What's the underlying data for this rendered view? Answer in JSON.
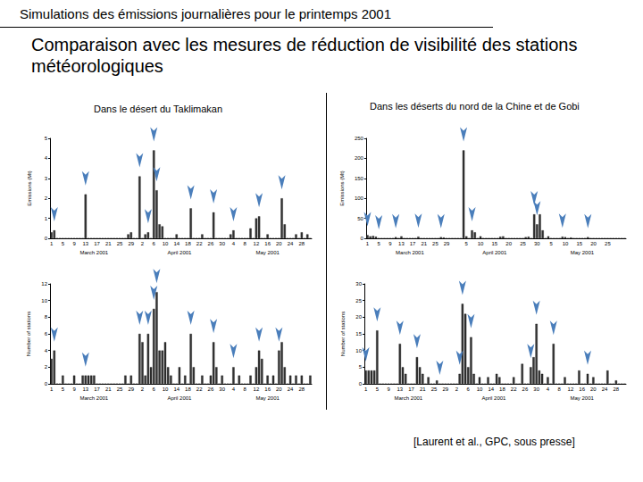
{
  "page": {
    "title": "Simulations des émissions journalières pour le printemps 2001",
    "subtitle": "Comparaison avec les mesures de réduction de visibilité des stations météorologiques",
    "left_heading": "Dans le désert du Taklimakan",
    "right_heading": "Dans les déserts du nord de la Chine et de Gobi",
    "source": "[Laurent et al., GPC, sous presse]"
  },
  "chart_data": [
    {
      "type": "bar",
      "y_label": "Emissions (Mt)",
      "color": "#333333",
      "grid": false,
      "categories": [
        "1",
        null,
        null,
        null,
        "5",
        null,
        null,
        null,
        "9",
        null,
        null,
        null,
        "13",
        null,
        null,
        null,
        "17",
        null,
        null,
        null,
        "21",
        null,
        null,
        null,
        "25",
        null,
        null,
        null,
        "29",
        null,
        null,
        null,
        "2",
        null,
        null,
        null,
        "6",
        null,
        null,
        null,
        "10",
        null,
        null,
        null,
        "14",
        null,
        null,
        null,
        "18",
        null,
        null,
        null,
        "22",
        null,
        null,
        null,
        "26",
        null,
        null,
        null,
        "30",
        null,
        null,
        null,
        "4",
        null,
        null,
        null,
        "8",
        null,
        null,
        null,
        "12",
        null,
        null,
        null,
        "16",
        null,
        null,
        null,
        "20",
        null,
        null,
        null,
        "24",
        null,
        null,
        null,
        "28",
        null,
        null,
        null
      ],
      "values": [
        0.3,
        0.4,
        0,
        0,
        0,
        0,
        0,
        0,
        0,
        0,
        0,
        0,
        2.2,
        0,
        0,
        0,
        0,
        0,
        0,
        0,
        0,
        0,
        0,
        0,
        0,
        0,
        0,
        0.2,
        0.3,
        0,
        0,
        3.1,
        0,
        0.2,
        0.3,
        0,
        4.4,
        2.4,
        0.7,
        0.6,
        0,
        0,
        0,
        0,
        0.2,
        0,
        0,
        0,
        0,
        1.5,
        0,
        0,
        0,
        0.2,
        0,
        0,
        0,
        1.3,
        0,
        0,
        0,
        0,
        0,
        0.2,
        0.4,
        0,
        0,
        0,
        0,
        0,
        0.5,
        0,
        1.0,
        1.1,
        0,
        0,
        0.2,
        0,
        0,
        0,
        0,
        2.0,
        0.7,
        0,
        0,
        0,
        0.2,
        0,
        0.3,
        0,
        0.2,
        0
      ],
      "ylim": [
        0,
        5
      ],
      "yticks": [
        0,
        1,
        2,
        3,
        4,
        5
      ],
      "x_groups": [
        {
          "label": "March 2001",
          "start": 0,
          "end": 30
        },
        {
          "label": "April 2001",
          "start": 31,
          "end": 60
        },
        {
          "label": "May 2001",
          "start": 61,
          "end": 91
        }
      ],
      "arrows": [
        1,
        12,
        31,
        34,
        36,
        37,
        49,
        57,
        64,
        73,
        81
      ]
    },
    {
      "type": "bar",
      "y_label": "Number of stations",
      "color": "#333333",
      "grid": false,
      "categories": [
        "1",
        null,
        null,
        null,
        "5",
        null,
        null,
        null,
        "9",
        null,
        null,
        null,
        "13",
        null,
        null,
        null,
        "17",
        null,
        null,
        null,
        "21",
        null,
        null,
        null,
        "25",
        null,
        null,
        null,
        "29",
        null,
        null,
        null,
        "2",
        null,
        null,
        null,
        "6",
        null,
        null,
        null,
        "10",
        null,
        null,
        null,
        "14",
        null,
        null,
        null,
        "18",
        null,
        null,
        null,
        "22",
        null,
        null,
        null,
        "26",
        null,
        null,
        null,
        "30",
        null,
        null,
        null,
        "4",
        null,
        null,
        null,
        "8",
        null,
        null,
        null,
        "12",
        null,
        null,
        null,
        "16",
        null,
        null,
        null,
        "20",
        null,
        null,
        null,
        "24",
        null,
        null,
        null,
        "28",
        null,
        null,
        null
      ],
      "values": [
        3,
        4,
        0,
        0,
        1,
        0,
        0,
        0,
        1,
        0,
        0,
        1,
        1,
        1,
        1,
        1,
        0,
        0,
        0,
        0,
        0,
        0,
        0,
        0,
        0,
        0,
        1,
        0,
        1,
        0,
        0,
        6,
        5,
        1,
        6,
        2,
        9,
        11,
        4,
        4,
        5,
        2,
        1,
        0,
        0,
        2,
        0,
        1,
        0,
        6,
        2,
        0,
        0,
        1,
        0,
        0,
        1,
        5,
        2,
        0,
        1,
        0,
        0,
        0,
        2,
        0,
        1,
        0,
        0,
        0,
        1,
        0,
        2,
        4,
        3,
        0,
        1,
        0,
        1,
        0,
        4,
        5,
        2,
        0,
        1,
        0,
        1,
        0,
        1,
        0,
        0,
        1
      ],
      "ylim": [
        0,
        12
      ],
      "yticks": [
        0,
        2,
        4,
        6,
        8,
        10,
        12
      ],
      "x_groups": [
        {
          "label": "March 2001",
          "start": 0,
          "end": 30
        },
        {
          "label": "April 2001",
          "start": 31,
          "end": 60
        },
        {
          "label": "May 2001",
          "start": 61,
          "end": 91
        }
      ],
      "arrows": [
        1,
        12,
        31,
        34,
        36,
        37,
        49,
        57,
        64,
        73,
        80
      ]
    },
    {
      "type": "bar",
      "y_label": "Emissions (Mt)",
      "color": "#333333",
      "grid": false,
      "categories": [
        "1",
        null,
        null,
        null,
        "5",
        null,
        null,
        null,
        "9",
        null,
        null,
        null,
        "13",
        null,
        null,
        null,
        "17",
        null,
        null,
        null,
        "21",
        null,
        null,
        null,
        "25",
        null,
        null,
        null,
        "29",
        null,
        null,
        null,
        null,
        null,
        null,
        "5",
        null,
        null,
        null,
        null,
        "10",
        null,
        null,
        null,
        null,
        "15",
        null,
        null,
        null,
        null,
        "20",
        null,
        null,
        null,
        null,
        "25",
        null,
        null,
        null,
        null,
        "30",
        null,
        null,
        null,
        null,
        "5",
        null,
        null,
        null,
        null,
        "10",
        null,
        null,
        null,
        null,
        "15",
        null,
        null,
        null,
        null,
        "20",
        null,
        null,
        null,
        null,
        "25",
        null,
        null,
        null,
        null,
        null,
        null
      ],
      "values": [
        8,
        5,
        6,
        4,
        0,
        0,
        0,
        0,
        0,
        0,
        3,
        0,
        5,
        0,
        0,
        0,
        0,
        0,
        4,
        0,
        0,
        0,
        0,
        0,
        0,
        0,
        3,
        2,
        0,
        0,
        0,
        0,
        0,
        0,
        220,
        5,
        0,
        20,
        15,
        0,
        5,
        0,
        0,
        0,
        0,
        0,
        0,
        4,
        5,
        0,
        0,
        0,
        0,
        0,
        0,
        0,
        3,
        4,
        0,
        60,
        35,
        60,
        20,
        0,
        5,
        0,
        0,
        0,
        0,
        4,
        3,
        0,
        2,
        0,
        0,
        0,
        0,
        0,
        3,
        0,
        0,
        0,
        0,
        0,
        0,
        0,
        0,
        0,
        0,
        0,
        0,
        0
      ],
      "ylim": [
        0,
        250
      ],
      "yticks": [
        0,
        50,
        100,
        150,
        200,
        250
      ],
      "x_groups": [
        {
          "label": "March 2001",
          "start": 0,
          "end": 30
        },
        {
          "label": "April 2001",
          "start": 31,
          "end": 60
        },
        {
          "label": "May 2001",
          "start": 61,
          "end": 91
        }
      ],
      "arrows": [
        0,
        4,
        10,
        18,
        26,
        34,
        37,
        59,
        60,
        69,
        78
      ]
    },
    {
      "type": "bar",
      "y_label": "Number of stations",
      "color": "#333333",
      "grid": false,
      "categories": [
        "1",
        null,
        null,
        null,
        "5",
        null,
        null,
        null,
        "9",
        null,
        null,
        null,
        "13",
        null,
        null,
        null,
        "17",
        null,
        null,
        null,
        "21",
        null,
        null,
        null,
        "25",
        null,
        null,
        null,
        "29",
        null,
        null,
        null,
        "2",
        null,
        null,
        null,
        "6",
        null,
        null,
        null,
        "10",
        null,
        null,
        null,
        "14",
        null,
        null,
        null,
        "18",
        null,
        null,
        null,
        "22",
        null,
        null,
        null,
        "26",
        null,
        null,
        null,
        "30",
        null,
        null,
        null,
        "4",
        null,
        null,
        null,
        "8",
        null,
        null,
        null,
        "12",
        null,
        null,
        null,
        "16",
        null,
        null,
        null,
        "20",
        null,
        null,
        null,
        "24",
        null,
        null,
        null,
        "28",
        null,
        null,
        null
      ],
      "values": [
        4,
        4,
        4,
        4,
        16,
        0,
        0,
        0,
        0,
        0,
        0,
        0,
        12,
        5,
        3,
        0,
        0,
        0,
        8,
        5,
        3,
        0,
        2,
        0,
        0,
        1,
        0,
        0,
        0,
        0,
        0,
        0,
        0,
        3,
        24,
        21,
        5,
        14,
        3,
        0,
        2,
        0,
        0,
        2,
        0,
        0,
        3,
        2,
        0,
        0,
        0,
        0,
        2,
        0,
        0,
        6,
        0,
        0,
        5,
        8,
        18,
        4,
        3,
        0,
        2,
        0,
        12,
        0,
        0,
        0,
        2,
        0,
        0,
        0,
        0,
        4,
        0,
        0,
        3,
        0,
        2,
        0,
        0,
        0,
        0,
        4,
        0,
        0,
        1,
        0,
        0,
        0
      ],
      "ylim": [
        0,
        30
      ],
      "yticks": [
        0,
        5,
        10,
        15,
        20,
        25,
        30
      ],
      "x_groups": [
        {
          "label": "March 2001",
          "start": 0,
          "end": 30
        },
        {
          "label": "April 2001",
          "start": 31,
          "end": 60
        },
        {
          "label": "May 2001",
          "start": 61,
          "end": 91
        }
      ],
      "arrows": [
        0,
        4,
        12,
        18,
        26,
        33,
        34,
        37,
        58,
        60,
        66,
        78
      ]
    }
  ]
}
